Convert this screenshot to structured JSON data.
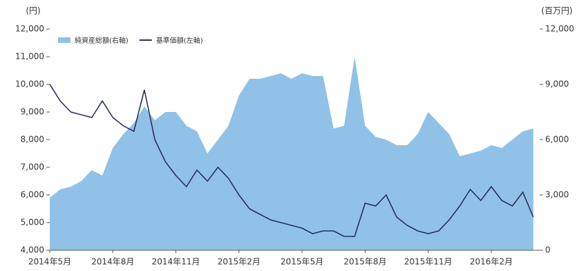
{
  "chart_data": {
    "type": "line",
    "y_label": "(円)",
    "y2_label": "(百万円)",
    "x": [
      0,
      0.5,
      1,
      1.5,
      2,
      2.5,
      3,
      3.5,
      4,
      4.5,
      5,
      5.5,
      6,
      6.5,
      7,
      7.5,
      8,
      8.5,
      9,
      9.5,
      10,
      10.5,
      11,
      11.5,
      12,
      12.5,
      13,
      13.5,
      14,
      14.5,
      15,
      15.5,
      16,
      16.5,
      17,
      17.5,
      18,
      18.5,
      19,
      19.5,
      20,
      20.5,
      21,
      21.5,
      22,
      22.5,
      23
    ],
    "xlim": [
      0,
      23.3
    ],
    "xticks": [
      {
        "value": 0,
        "label": "2014年5月"
      },
      {
        "value": 3,
        "label": "2014年8月"
      },
      {
        "value": 6,
        "label": "2014年11月"
      },
      {
        "value": 9,
        "label": "2015年2月"
      },
      {
        "value": 12,
        "label": "2015年5月"
      },
      {
        "value": 15,
        "label": "2015年8月"
      },
      {
        "value": 18,
        "label": "2015年11月"
      },
      {
        "value": 21,
        "label": "2016年2月"
      }
    ],
    "ylim": [
      4000,
      12000
    ],
    "yticks": [
      {
        "value": 4000,
        "label": "4,000"
      },
      {
        "value": 5000,
        "label": "5,000"
      },
      {
        "value": 6000,
        "label": "6,000"
      },
      {
        "value": 7000,
        "label": "7,000"
      },
      {
        "value": 8000,
        "label": "8,000"
      },
      {
        "value": 9000,
        "label": "9,000"
      },
      {
        "value": 10000,
        "label": "10,000"
      },
      {
        "value": 11000,
        "label": "11,000"
      },
      {
        "value": 12000,
        "label": "12,000"
      }
    ],
    "y2lim": [
      0,
      12000
    ],
    "y2ticks": [
      0,
      {
        "value": 3000,
        "label": "3,000"
      },
      {
        "value": 6000,
        "label": "6,000"
      },
      {
        "value": 9000,
        "label": "9,000"
      },
      {
        "value": 12000,
        "label": "12,000"
      }
    ],
    "series": [
      {
        "name": "純資産総額(右軸)",
        "color": "#8fc2e6",
        "axis": "y2",
        "fill": true,
        "values": [
          2850,
          3300,
          3450,
          3750,
          4350,
          4050,
          5550,
          6300,
          6900,
          7800,
          7050,
          7500,
          7500,
          6750,
          6450,
          5250,
          6000,
          6750,
          8400,
          9300,
          9300,
          9450,
          9600,
          9300,
          9600,
          9450,
          9450,
          6600,
          6750,
          10500,
          6750,
          6150,
          6000,
          5700,
          5700,
          6300,
          7500,
          6900,
          6300,
          5100,
          5250,
          5400,
          5700,
          5550,
          6000,
          6450,
          6600
        ]
      },
      {
        "name": "基準価額(左軸)",
        "color": "#2b2f5c",
        "values": [
          10000,
          9400,
          9000,
          8900,
          8800,
          9400,
          8800,
          8500,
          8300,
          9800,
          8000,
          7200,
          6700,
          6300,
          6900,
          6500,
          7000,
          6600,
          6000,
          5500,
          5300,
          5100,
          5000,
          4900,
          4800,
          4600,
          4700,
          4700,
          4500,
          4500,
          5700,
          5600,
          6000,
          5200,
          4900,
          4700,
          4600,
          4700,
          5100,
          5600,
          6200,
          5800,
          6300,
          5800,
          5600,
          6100,
          5200
        ]
      }
    ]
  }
}
